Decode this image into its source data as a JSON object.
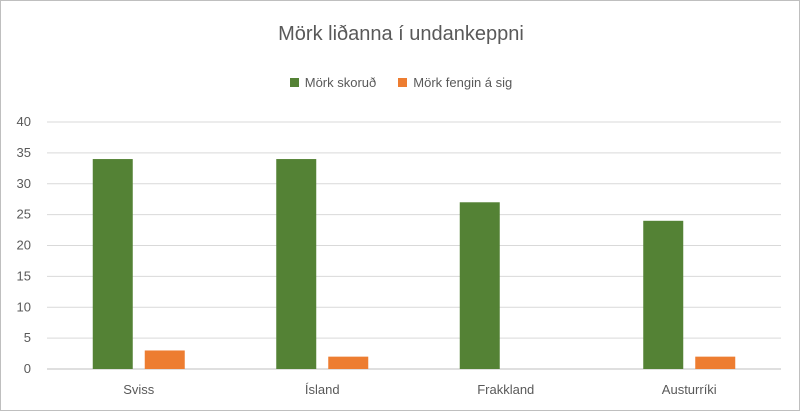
{
  "chart_data": {
    "type": "bar",
    "title": "Mörk liðanna í undankeppni",
    "categories": [
      "Sviss",
      "Ísland",
      "Frakkland",
      "Austurríki"
    ],
    "series": [
      {
        "name": "Mörk skoruð",
        "values": [
          34,
          34,
          27,
          24
        ],
        "color": "#548235"
      },
      {
        "name": "Mörk fengin á sig",
        "values": [
          3,
          2,
          0,
          2
        ],
        "color": "#ed7d31"
      }
    ],
    "ylim": [
      0,
      40
    ],
    "yticks": [
      0,
      5,
      10,
      15,
      20,
      25,
      30,
      35,
      40
    ],
    "grid": true,
    "legend_position": "top"
  }
}
